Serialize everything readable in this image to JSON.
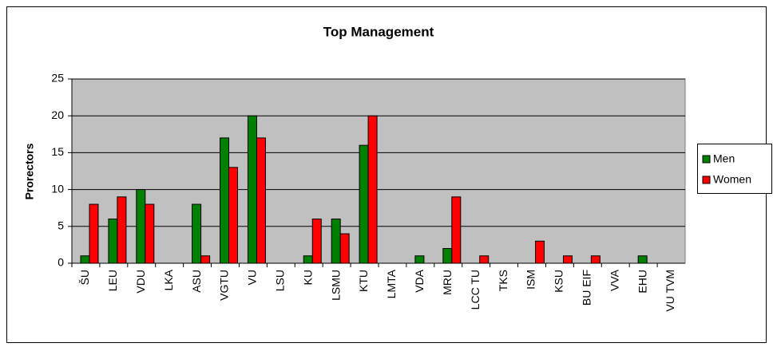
{
  "chart_data": {
    "type": "bar",
    "title": "Top Management",
    "y_label": "Prorectors",
    "categories": [
      "ŠU",
      "LEU",
      "VDU",
      "LKA",
      "ASU",
      "VGTU",
      "VU",
      "LSU",
      "KU",
      "LSMU",
      "KTU",
      "LMTA",
      "VDA",
      "MRU",
      "LCC TU",
      "TKS",
      "ISM",
      "KSU",
      "BU EIF",
      "VVA",
      "EHU",
      "VU TVM"
    ],
    "series": [
      {
        "name": "Men",
        "color": "#008000",
        "values": [
          1,
          6,
          10,
          0,
          8,
          17,
          20,
          0,
          1,
          6,
          16,
          0,
          1,
          2,
          0,
          0,
          0,
          0,
          0,
          0,
          1,
          0
        ]
      },
      {
        "name": "Women",
        "color": "#ff0000",
        "values": [
          8,
          9,
          8,
          0,
          1,
          13,
          17,
          0,
          6,
          4,
          20,
          0,
          0,
          9,
          1,
          0,
          3,
          1,
          1,
          0,
          0,
          0
        ]
      }
    ],
    "ylim": [
      0,
      25
    ],
    "yticks": [
      0,
      5,
      10,
      15,
      20,
      25
    ],
    "grid": true,
    "legend": "right"
  }
}
